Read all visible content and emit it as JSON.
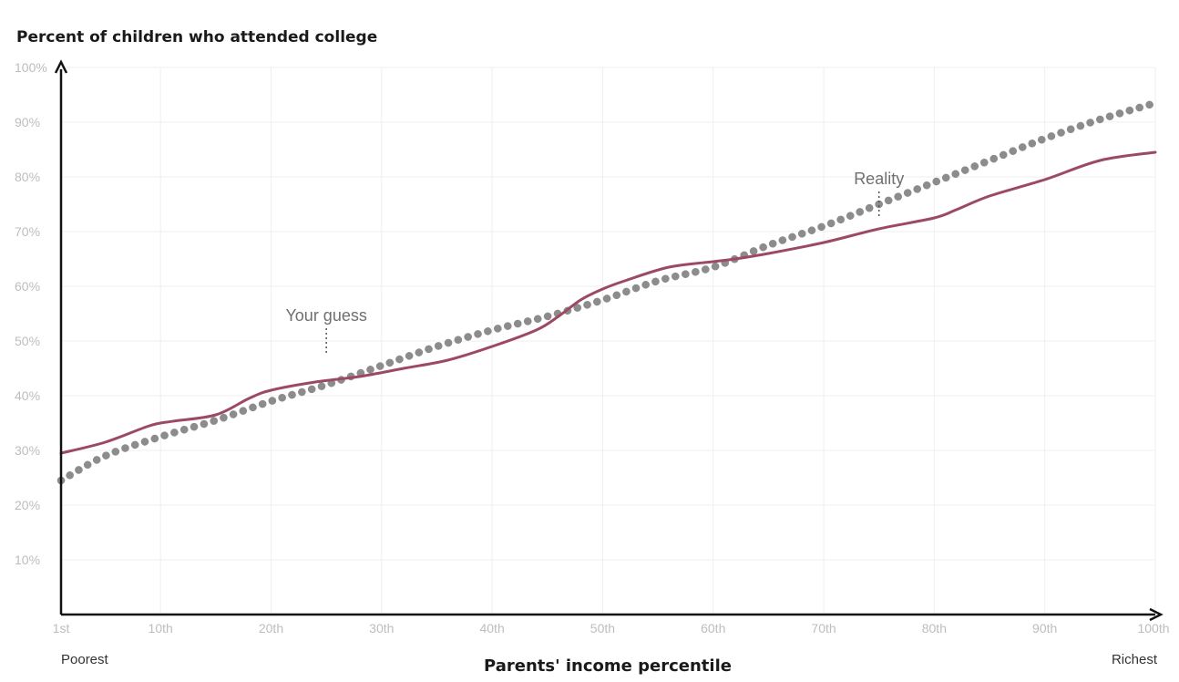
{
  "chart_data": {
    "type": "line",
    "ylabel": "Percent of children who attended college",
    "xlabel": "Parents' income percentile",
    "x_low_label": "Poorest",
    "x_high_label": "Richest",
    "xlim": [
      1,
      100
    ],
    "ylim": [
      0,
      100
    ],
    "grid": true,
    "x_ticks": [
      {
        "value": 1,
        "label": "1st"
      },
      {
        "value": 10,
        "label": "10th"
      },
      {
        "value": 20,
        "label": "20th"
      },
      {
        "value": 30,
        "label": "30th"
      },
      {
        "value": 40,
        "label": "40th"
      },
      {
        "value": 50,
        "label": "50th"
      },
      {
        "value": 60,
        "label": "60th"
      },
      {
        "value": 70,
        "label": "70th"
      },
      {
        "value": 80,
        "label": "80th"
      },
      {
        "value": 90,
        "label": "90th"
      },
      {
        "value": 100,
        "label": "100th"
      }
    ],
    "y_ticks": [
      {
        "value": 10,
        "label": "10%"
      },
      {
        "value": 20,
        "label": "20%"
      },
      {
        "value": 30,
        "label": "30%"
      },
      {
        "value": 40,
        "label": "40%"
      },
      {
        "value": 50,
        "label": "50%"
      },
      {
        "value": 60,
        "label": "60%"
      },
      {
        "value": 70,
        "label": "70%"
      },
      {
        "value": 80,
        "label": "80%"
      },
      {
        "value": 90,
        "label": "90%"
      },
      {
        "value": 100,
        "label": "100%"
      }
    ],
    "series": [
      {
        "name": "Reality",
        "style": "dotted",
        "color": "#8c8c8c",
        "x": [
          1,
          5,
          10,
          15,
          20,
          25,
          30,
          35,
          40,
          45,
          50,
          55,
          60,
          65,
          70,
          75,
          80,
          85,
          90,
          95,
          100
        ],
        "y": [
          24.5,
          29,
          32.5,
          35.5,
          39,
          42,
          45.5,
          49,
          52,
          54.5,
          57.5,
          61,
          63.5,
          67.5,
          71,
          75,
          79,
          83,
          87,
          90.5,
          93.5
        ]
      },
      {
        "name": "Your guess",
        "style": "solid",
        "color": "#9c4a62",
        "x": [
          1,
          5,
          9,
          11,
          15,
          18,
          20,
          24,
          28,
          32,
          36,
          40,
          44,
          46,
          48,
          50,
          52,
          56,
          60,
          62,
          65,
          70,
          75,
          80,
          82,
          85,
          90,
          95,
          100
        ],
        "y": [
          29.5,
          31.5,
          34.5,
          35.3,
          36.5,
          39.5,
          41,
          42.5,
          43.5,
          45,
          46.5,
          49,
          52,
          54.5,
          57.5,
          59.5,
          61,
          63.5,
          64.5,
          65,
          66,
          68,
          70.5,
          72.5,
          74,
          76.5,
          79.5,
          83,
          84.5
        ]
      }
    ],
    "annotations": [
      {
        "text": "Reality",
        "x": 75,
        "y": 80
      },
      {
        "text": "Your guess",
        "x": 25,
        "y": 55
      }
    ]
  }
}
